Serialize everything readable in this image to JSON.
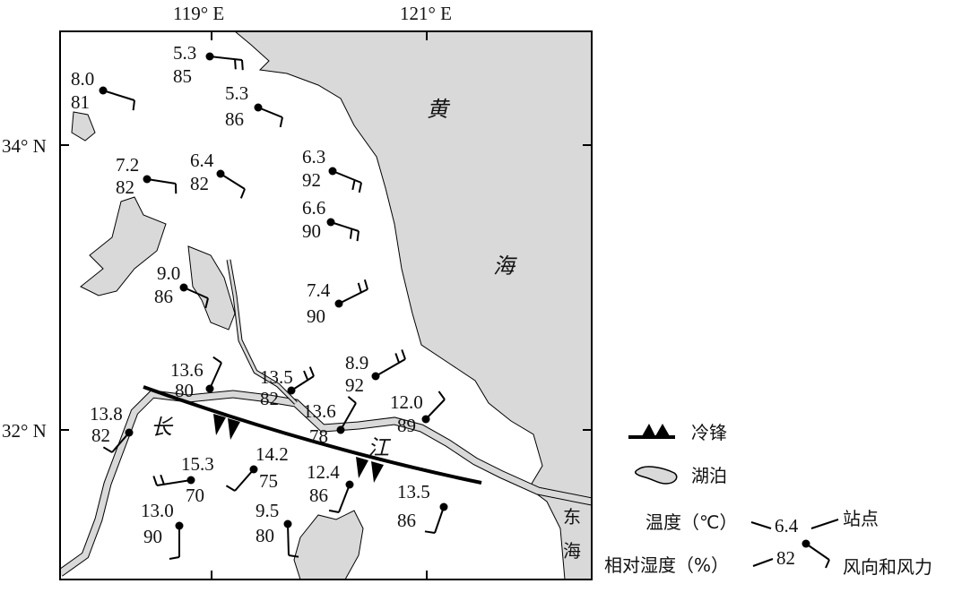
{
  "axes": {
    "lon_labels": [
      "119° E",
      "121° E"
    ],
    "lat_labels": [
      "34° N",
      "32° N"
    ]
  },
  "place_labels": {
    "yellow_sea": [
      "黄",
      "海"
    ],
    "yangtze": [
      "长",
      "江"
    ],
    "east_sea": [
      "东",
      "海"
    ]
  },
  "stations": [
    {
      "temp": "5.3",
      "rh": "85",
      "wind_to": "E",
      "barbs": 2
    },
    {
      "temp": "8.0",
      "rh": "81",
      "wind_to": "ESE",
      "barbs": 1
    },
    {
      "temp": "5.3",
      "rh": "86",
      "wind_to": "SE",
      "barbs": 1
    },
    {
      "temp": "7.2",
      "rh": "82",
      "wind_to": "E",
      "barbs": 1
    },
    {
      "temp": "6.4",
      "rh": "82",
      "wind_to": "SE",
      "barbs": 1
    },
    {
      "temp": "6.3",
      "rh": "92",
      "wind_to": "ESE",
      "barbs": 2
    },
    {
      "temp": "6.6",
      "rh": "90",
      "wind_to": "ESE",
      "barbs": 2
    },
    {
      "temp": "9.0",
      "rh": "86",
      "wind_to": "ESE",
      "barbs": 1
    },
    {
      "temp": "7.4",
      "rh": "90",
      "wind_to": "NE",
      "barbs": 2
    },
    {
      "temp": "13.6",
      "rh": "80",
      "wind_to": "NNE",
      "barbs": 1
    },
    {
      "temp": "13.5",
      "rh": "82",
      "wind_to": "NE",
      "barbs": 2
    },
    {
      "temp": "8.9",
      "rh": "92",
      "wind_to": "NE",
      "barbs": 2
    },
    {
      "temp": "13.6",
      "rh": "78",
      "wind_to": "NNE",
      "barbs": 1
    },
    {
      "temp": "12.0",
      "rh": "89",
      "wind_to": "NE",
      "barbs": 1
    },
    {
      "temp": "13.8",
      "rh": "82",
      "wind_to": "SW",
      "barbs": 1
    },
    {
      "temp": "15.3",
      "rh": "70",
      "wind_to": "W",
      "barbs": 2
    },
    {
      "temp": "14.2",
      "rh": "75",
      "wind_to": "SW",
      "barbs": 1
    },
    {
      "temp": "12.4",
      "rh": "86",
      "wind_to": "SSW",
      "barbs": 1
    },
    {
      "temp": "13.5",
      "rh": "86",
      "wind_to": "SSW",
      "barbs": 1
    },
    {
      "temp": "13.0",
      "rh": "90",
      "wind_to": "S",
      "barbs": 1
    },
    {
      "temp": "9.5",
      "rh": "80",
      "wind_to": "S",
      "barbs": 1
    }
  ],
  "legend": {
    "cold_front": "冷锋",
    "lake": "湖泊",
    "temp_label": "温度（℃）",
    "sample_temp": "6.4",
    "station_label": "站点",
    "rh_label": "相对湿度（%）",
    "sample_rh": "82",
    "wind_label": "风向和风力"
  },
  "colors": {
    "water": "#d9d9d9",
    "line": "#000000",
    "land": "#ffffff"
  }
}
